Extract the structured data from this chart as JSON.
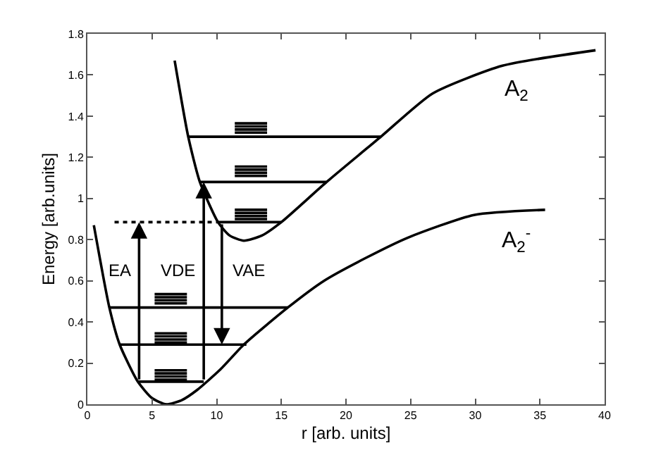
{
  "chart_data": {
    "type": "line",
    "xlabel": "r [arb. units]",
    "ylabel": "Energy [arb.units]",
    "xlim": [
      0,
      40
    ],
    "xticks": [
      0,
      5,
      10,
      15,
      20,
      25,
      30,
      35,
      40
    ],
    "ylim": [
      0,
      1.8
    ],
    "yticks": [
      0,
      0.2,
      0.4,
      0.6,
      0.8,
      1,
      1.2,
      1.4,
      1.6,
      1.8
    ],
    "line_style": "solid",
    "series": [
      {
        "name": "A$_{2}$$^{-}$",
        "color": "#000000",
        "x": [
          0.5,
          1.7,
          2.5,
          3.9,
          5.0,
          6.1,
          7.3,
          8.5,
          10.3,
          12.1,
          15.5,
          18.3,
          21.5,
          24.8,
          29.9,
          35.4
        ],
        "values": [
          0.87,
          0.47,
          0.29,
          0.11,
          0.03,
          0,
          0.02,
          0.07,
          0.17,
          0.29,
          0.47,
          0.6,
          0.71,
          0.81,
          0.92,
          0.945
        ]
      },
      {
        "name": "A$_{2}$",
        "color": "#000000",
        "x": [
          6.75,
          7.8,
          8.7,
          10.1,
          11.0,
          12.1,
          13.5,
          15.0,
          18.5,
          22.7,
          26.7,
          32.1,
          39.3
        ],
        "values": [
          1.67,
          1.3,
          1.08,
          0.885,
          0.82,
          0.795,
          0.82,
          0.885,
          1.08,
          1.3,
          1.51,
          1.645,
          1.72
        ]
      },
      {
        "color": "#000000",
        "x": [
          3.9,
          9.0
        ],
        "values": [
          0.11,
          0.11
        ]
      },
      {
        "color": "#000000",
        "x": [
          2.5,
          12.3
        ],
        "values": [
          0.29,
          0.29
        ]
      },
      {
        "color": "#000000",
        "x": [
          1.7,
          15.5
        ],
        "values": [
          0.47,
          0.47
        ]
      },
      {
        "color": "#000000",
        "x": [
          10.1,
          15.0
        ],
        "values": [
          0.885,
          0.885
        ]
      },
      {
        "color": "#000000",
        "x": [
          8.7,
          18.5
        ],
        "values": [
          1.08,
          1.08
        ]
      },
      {
        "color": "#000000",
        "x": [
          7.8,
          22.7
        ],
        "values": [
          1.3,
          1.3
        ]
      },
      {
        "color": "#000000",
        "x": [
          5.2,
          7.7
        ],
        "values": [
          0.12,
          0.12
        ]
      },
      {
        "color": "#000000",
        "x": [
          5.2,
          7.7
        ],
        "values": [
          0.135,
          0.135
        ]
      },
      {
        "color": "#000000",
        "x": [
          5.2,
          7.7
        ],
        "values": [
          0.15,
          0.15
        ]
      },
      {
        "color": "#000000",
        "x": [
          5.2,
          7.7
        ],
        "values": [
          0.165,
          0.165
        ]
      },
      {
        "color": "#000000",
        "x": [
          5.2,
          7.7
        ],
        "values": [
          0.3,
          0.3
        ]
      },
      {
        "color": "#000000",
        "x": [
          5.2,
          7.7
        ],
        "values": [
          0.315,
          0.315
        ]
      },
      {
        "color": "#000000",
        "x": [
          5.2,
          7.7
        ],
        "values": [
          0.33,
          0.33
        ]
      },
      {
        "color": "#000000",
        "x": [
          5.2,
          7.7
        ],
        "values": [
          0.345,
          0.345
        ]
      },
      {
        "color": "#000000",
        "x": [
          5.2,
          7.7
        ],
        "values": [
          0.49,
          0.49
        ]
      },
      {
        "color": "#000000",
        "x": [
          5.2,
          7.7
        ],
        "values": [
          0.505,
          0.505
        ]
      },
      {
        "color": "#000000",
        "x": [
          5.2,
          7.7
        ],
        "values": [
          0.52,
          0.52
        ]
      },
      {
        "color": "#000000",
        "x": [
          5.2,
          7.7
        ],
        "values": [
          0.535,
          0.535
        ]
      },
      {
        "color": "#000000",
        "x": [
          11.4,
          13.9
        ],
        "values": [
          0.9,
          0.9
        ]
      },
      {
        "color": "#000000",
        "x": [
          11.4,
          13.9
        ],
        "values": [
          0.915,
          0.915
        ]
      },
      {
        "color": "#000000",
        "x": [
          11.4,
          13.9
        ],
        "values": [
          0.93,
          0.93
        ]
      },
      {
        "color": "#000000",
        "x": [
          11.4,
          13.9
        ],
        "values": [
          0.945,
          0.945
        ]
      },
      {
        "color": "#000000",
        "x": [
          11.4,
          13.9
        ],
        "values": [
          1.11,
          1.11
        ]
      },
      {
        "color": "#000000",
        "x": [
          11.4,
          13.9
        ],
        "values": [
          1.125,
          1.125
        ]
      },
      {
        "color": "#000000",
        "x": [
          11.4,
          13.9
        ],
        "values": [
          1.14,
          1.14
        ]
      },
      {
        "color": "#000000",
        "x": [
          11.4,
          13.9
        ],
        "values": [
          1.155,
          1.155
        ]
      },
      {
        "color": "#000000",
        "x": [
          11.4,
          13.9
        ],
        "values": [
          1.32,
          1.32
        ]
      },
      {
        "color": "#000000",
        "x": [
          11.4,
          13.9
        ],
        "values": [
          1.335,
          1.335
        ]
      },
      {
        "color": "#000000",
        "x": [
          11.4,
          13.9
        ],
        "values": [
          1.35,
          1.35
        ]
      },
      {
        "color": "#000000",
        "x": [
          11.4,
          13.9
        ],
        "values": [
          1.365,
          1.365
        ]
      },
      {
        "color": "#000000",
        "line_style": "dotted",
        "x": [
          2.1,
          10.1
        ],
        "values": [
          0.885,
          0.885
        ]
      }
    ],
    "annotations": [
      "EA",
      "VDE",
      "VAE"
    ]
  }
}
